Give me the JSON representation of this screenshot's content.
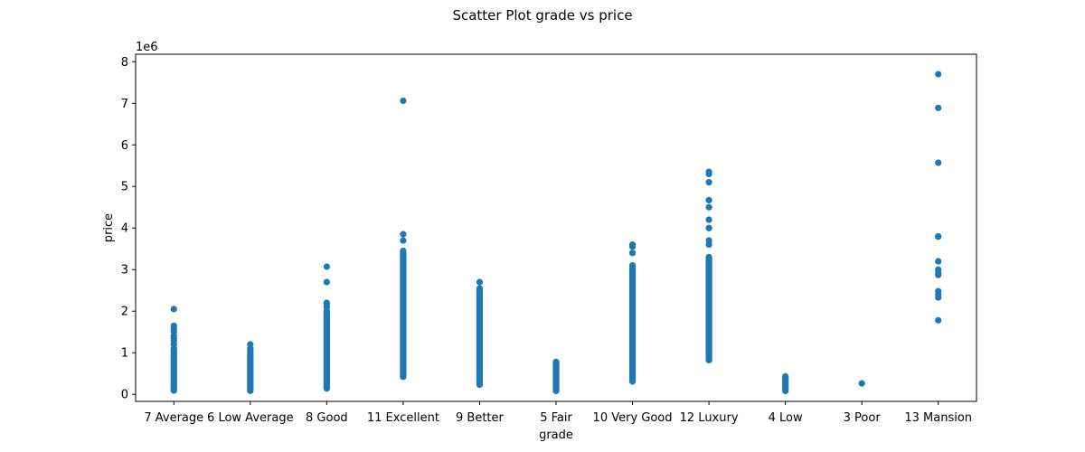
{
  "chart_data": {
    "type": "scatter",
    "title": "Scatter Plot grade vs price",
    "xlabel": "grade",
    "ylabel": "price",
    "y_offset_label": "1e6",
    "y_tick_labels": [
      "0",
      "1",
      "2",
      "3",
      "4",
      "5",
      "6",
      "7",
      "8"
    ],
    "y_ticks": [
      0,
      1000000,
      2000000,
      3000000,
      4000000,
      5000000,
      6000000,
      7000000,
      8000000
    ],
    "ylim": [
      -170000,
      8180000
    ],
    "grid": false,
    "legend": "none",
    "color": "#1f77b4",
    "categories": [
      "7 Average",
      "6 Low Average",
      "8 Good",
      "11 Excellent",
      "9 Better",
      "5 Fair",
      "10 Very Good",
      "12 Luxury",
      "4 Low",
      "3 Poor",
      "13 Mansion"
    ],
    "series": [
      {
        "category": "7 Average",
        "range": [
          90000,
          1100000
        ],
        "points": [
          1200000,
          1280000,
          1350000,
          1400000,
          1500000,
          1580000,
          1650000,
          2050000
        ]
      },
      {
        "category": "6 Low Average",
        "range": [
          85000,
          950000
        ],
        "points": [
          1000000,
          1050000,
          1100000,
          1200000
        ]
      },
      {
        "category": "8 Good",
        "range": [
          140000,
          2000000
        ],
        "points": [
          2100000,
          2180000,
          2200000,
          2700000,
          3070000
        ]
      },
      {
        "category": "11 Excellent",
        "range": [
          420000,
          3450000
        ],
        "points": [
          3700000,
          3850000,
          7060000
        ]
      },
      {
        "category": "9 Better",
        "range": [
          230000,
          2550000
        ],
        "points": [
          2700000
        ]
      },
      {
        "category": "5 Fair",
        "range": [
          80000,
          780000
        ],
        "points": []
      },
      {
        "category": "10 Very Good",
        "range": [
          310000,
          3100000
        ],
        "points": [
          3400000,
          3550000,
          3600000
        ]
      },
      {
        "category": "12 Luxury",
        "range": [
          820000,
          3300000
        ],
        "points": [
          3600000,
          3700000,
          4000000,
          4200000,
          4500000,
          4670000,
          5100000,
          5300000,
          5350000
        ]
      },
      {
        "category": "4 Low",
        "range": [
          80000,
          430000
        ],
        "points": []
      },
      {
        "category": "3 Poor",
        "range": [
          262000,
          262000
        ],
        "points": []
      },
      {
        "category": "13 Mansion",
        "range": [
          1780000,
          1780000
        ],
        "points": [
          2330000,
          2400000,
          2480000,
          2870000,
          2920000,
          3000000,
          3200000,
          3790000,
          3800000,
          5570000,
          6890000,
          7700000
        ]
      }
    ]
  }
}
